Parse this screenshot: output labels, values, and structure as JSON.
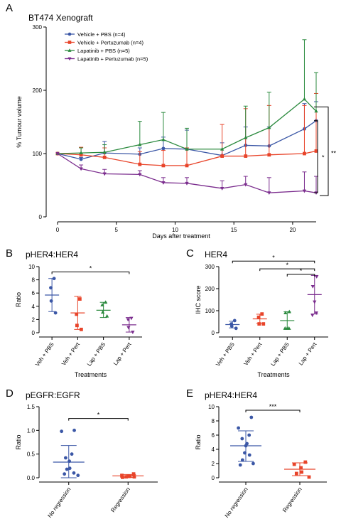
{
  "chart_data": [
    {
      "panel": "A",
      "type": "line",
      "title": "BT474 Xenograft",
      "xlabel": "Days after treatment",
      "ylabel": "% Tumour volume",
      "xlim": [
        0,
        22
      ],
      "ylim": [
        0,
        300
      ],
      "xticks": [
        0,
        5,
        10,
        15,
        20
      ],
      "yticks": [
        0,
        100,
        200,
        300
      ],
      "legend_position": "top-left",
      "x": [
        0,
        2,
        4,
        7,
        9,
        11,
        14,
        16,
        18,
        21,
        22
      ],
      "series": [
        {
          "name": "Vehicle + PBS (n=4)",
          "color": "#3b57a6",
          "marker": "circle",
          "values": [
            100,
            91,
            101,
            99,
            108,
            107,
            97,
            113,
            112,
            139,
            152
          ],
          "err": [
            0,
            3,
            18,
            10,
            18,
            30,
            20,
            29,
            30,
            40,
            30
          ]
        },
        {
          "name": "Vehicle + Pertuzumab (n=4)",
          "color": "#e8442a",
          "marker": "square",
          "values": [
            100,
            98,
            94,
            83,
            81,
            81,
            96,
            96,
            98,
            100,
            104
          ],
          "err": [
            0,
            12,
            15,
            20,
            24,
            28,
            50,
            75,
            78,
            76,
            91
          ]
        },
        {
          "name": "Lapatinib + PBS (n=5)",
          "color": "#2b8a3e",
          "marker": "triangle",
          "values": [
            100,
            101,
            102,
            114,
            122,
            107,
            107,
            125,
            141,
            186,
            167
          ],
          "err": [
            0,
            8,
            12,
            37,
            43,
            33,
            0,
            50,
            56,
            94,
            61
          ]
        },
        {
          "name": "Lapatinib + Pertuzumab (n=5)",
          "color": "#7b2d8e",
          "marker": "triangle-down",
          "values": [
            100,
            76,
            68,
            67,
            54,
            53,
            45,
            51,
            38,
            41,
            38
          ],
          "err": [
            0,
            6,
            7,
            6,
            8,
            9,
            12,
            13,
            24,
            30,
            26
          ]
        }
      ],
      "annotations": [
        {
          "text": "*",
          "between": [
            "Vehicle + PBS (n=4)",
            "Lapatinib + Pertuzumab (n=5)"
          ]
        },
        {
          "text": "**",
          "between": [
            "Vehicle + PBS (n=4)",
            "Lapatinib + Pertuzumab (n=5)"
          ]
        }
      ]
    },
    {
      "panel": "B",
      "type": "scatter",
      "title": "pHER4:HER4",
      "xlabel": "Treatments",
      "ylabel": "Ratio",
      "ylim": [
        0,
        10
      ],
      "yticks": [
        0,
        2,
        4,
        6,
        8,
        10
      ],
      "categories": [
        "Veh + PBS",
        "Veh + Pert",
        "Lap + PBS",
        "Lap + Pert"
      ],
      "groups": [
        {
          "category": "Veh + PBS",
          "color": "#3b57a6",
          "marker": "circle",
          "points": [
            8.2,
            6.8,
            4.8,
            3.0
          ],
          "mean": 5.7,
          "sd_low": 3.2,
          "sd_high": 8.2
        },
        {
          "category": "Veh + Pert",
          "color": "#e8442a",
          "marker": "square",
          "points": [
            5.1,
            2.8,
            1.1,
            0.5
          ],
          "mean": 3.0,
          "sd_low": 0.5,
          "sd_high": 5.5
        },
        {
          "category": "Lap + PBS",
          "color": "#2b8a3e",
          "marker": "triangle",
          "points": [
            4.6,
            4.2,
            3.1,
            2.5
          ],
          "mean": 3.4,
          "sd_low": 2.3,
          "sd_high": 4.6
        },
        {
          "category": "Lap + Pert",
          "color": "#7b2d8e",
          "marker": "triangle-down",
          "points": [
            2.2,
            2.0,
            0.8,
            0.1
          ],
          "mean": 1.2,
          "sd_low": 0.1,
          "sd_high": 2.3
        }
      ],
      "brackets": [
        {
          "from": "Veh + PBS",
          "to": "Lap + Pert",
          "y": 9.2,
          "text": "*"
        }
      ]
    },
    {
      "panel": "C",
      "type": "scatter",
      "title": "HER4",
      "xlabel": "Treatments",
      "ylabel": "IHC score",
      "ylim": [
        0,
        300
      ],
      "yticks": [
        0,
        100,
        200,
        300
      ],
      "categories": [
        "Veh + PBS",
        "Veh + Pert",
        "Lap + PBS",
        "Lap + Pert"
      ],
      "groups": [
        {
          "category": "Veh + PBS",
          "color": "#3b57a6",
          "marker": "circle",
          "points": [
            55,
            40,
            30,
            20
          ],
          "mean": 37,
          "sd_low": 22,
          "sd_high": 52
        },
        {
          "category": "Veh + Pert",
          "color": "#e8442a",
          "marker": "square",
          "points": [
            85,
            70,
            40,
            40
          ],
          "mean": 63,
          "sd_low": 42,
          "sd_high": 84
        },
        {
          "category": "Lap + PBS",
          "color": "#2b8a3e",
          "marker": "triangle",
          "points": [
            95,
            90,
            20,
            20,
            20
          ],
          "mean": 55,
          "sd_low": 15,
          "sd_high": 95
        },
        {
          "category": "Lap + Pert",
          "color": "#7b2d8e",
          "marker": "triangle-down",
          "points": [
            255,
            210,
            140,
            90,
            80
          ],
          "mean": 173,
          "sd_low": 85,
          "sd_high": 260
        }
      ],
      "brackets": [
        {
          "from": "Veh + PBS",
          "to": "Lap + Pert",
          "y": 325,
          "text": "*"
        },
        {
          "from": "Veh + Pert",
          "to": "Lap + Pert",
          "y": 290,
          "text": "*"
        },
        {
          "from": "Lap + PBS",
          "to": "Lap + Pert",
          "y": 265,
          "text": "*"
        }
      ]
    },
    {
      "panel": "D",
      "type": "scatter",
      "title": "pEGFR:EGFR",
      "ylabel": "Ratio",
      "ylim": [
        0,
        1.5
      ],
      "yticks": [
        0.0,
        0.5,
        1.0,
        1.5
      ],
      "categories": [
        "No regression",
        "Regression"
      ],
      "groups": [
        {
          "category": "No regression",
          "color": "#3b57a6",
          "marker": "circle",
          "points": [
            1.0,
            0.98,
            0.5,
            0.42,
            0.35,
            0.2,
            0.18,
            0.1,
            0.08,
            0.05
          ],
          "mean": 0.33,
          "sd_low": 0.0,
          "sd_high": 0.68
        },
        {
          "category": "Regression",
          "color": "#e8442a",
          "marker": "square",
          "points": [
            0.08,
            0.05,
            0.03,
            0.03,
            0.02,
            0.02,
            0.01
          ],
          "mean": 0.04,
          "sd_low": 0.01,
          "sd_high": 0.07
        }
      ],
      "brackets": [
        {
          "from": "No regression",
          "to": "Regression",
          "y": 1.25,
          "text": "*"
        }
      ]
    },
    {
      "panel": "E",
      "type": "scatter",
      "title": "pHER4:HER4",
      "ylabel": "Ratio",
      "ylim": [
        0,
        10
      ],
      "yticks": [
        0,
        2,
        4,
        6,
        8,
        10
      ],
      "categories": [
        "No regression",
        "Regression"
      ],
      "groups": [
        {
          "category": "No regression",
          "color": "#3b57a6",
          "marker": "circle",
          "points": [
            8.5,
            7.0,
            6.0,
            5.5,
            4.8,
            4.5,
            3.5,
            3.2,
            2.5,
            2.0,
            1.8
          ],
          "mean": 4.5,
          "sd_low": 2.3,
          "sd_high": 6.6
        },
        {
          "category": "Regression",
          "color": "#e8442a",
          "marker": "square",
          "points": [
            2.2,
            1.9,
            1.4,
            0.8,
            0.6,
            0.1
          ],
          "mean": 1.2,
          "sd_low": 0.3,
          "sd_high": 2.1
        }
      ],
      "brackets": [
        {
          "from": "No regression",
          "to": "Regression",
          "y": 9.5,
          "text": "***"
        }
      ]
    }
  ]
}
